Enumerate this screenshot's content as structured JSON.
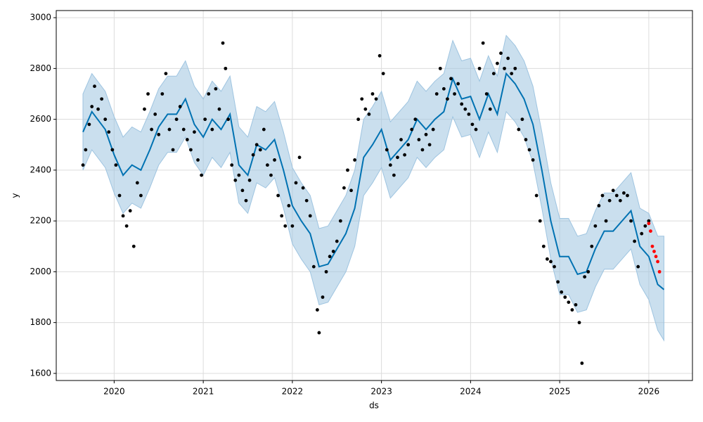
{
  "chart_data": {
    "type": "forecast",
    "xlabel": "ds",
    "ylabel": "y",
    "xlim": [
      2019.35,
      2026.49
    ],
    "ylim": [
      1572,
      3028
    ],
    "xticks": [
      2020,
      2021,
      2022,
      2023,
      2024,
      2025,
      2026
    ],
    "yticks": [
      1600,
      1800,
      2000,
      2200,
      2400,
      2600,
      2800,
      3000
    ],
    "grid": true,
    "forecast": {
      "color": "#0072b2",
      "band_color": "#9ec4e0",
      "x": [
        2019.65,
        2019.75,
        2019.9,
        2020.0,
        2020.1,
        2020.2,
        2020.3,
        2020.4,
        2020.5,
        2020.6,
        2020.7,
        2020.8,
        2020.9,
        2021.0,
        2021.1,
        2021.2,
        2021.3,
        2021.4,
        2021.5,
        2021.6,
        2021.7,
        2021.8,
        2021.9,
        2022.0,
        2022.1,
        2022.2,
        2022.3,
        2022.4,
        2022.5,
        2022.6,
        2022.7,
        2022.8,
        2022.9,
        2023.0,
        2023.1,
        2023.2,
        2023.3,
        2023.4,
        2023.5,
        2023.6,
        2023.7,
        2023.8,
        2023.9,
        2024.0,
        2024.1,
        2024.2,
        2024.3,
        2024.4,
        2024.5,
        2024.6,
        2024.7,
        2024.8,
        2024.9,
        2025.0,
        2025.1,
        2025.2,
        2025.3,
        2025.4,
        2025.5,
        2025.6,
        2025.7,
        2025.8,
        2025.9,
        2026.0,
        2026.1,
        2026.17
      ],
      "values": [
        2550,
        2630,
        2560,
        2460,
        2380,
        2420,
        2400,
        2480,
        2570,
        2620,
        2620,
        2680,
        2580,
        2530,
        2600,
        2560,
        2620,
        2420,
        2380,
        2500,
        2480,
        2520,
        2400,
        2260,
        2200,
        2150,
        2020,
        2030,
        2090,
        2150,
        2250,
        2450,
        2500,
        2560,
        2440,
        2480,
        2520,
        2600,
        2560,
        2600,
        2630,
        2760,
        2680,
        2690,
        2600,
        2700,
        2620,
        2780,
        2740,
        2680,
        2580,
        2400,
        2200,
        2060,
        2060,
        1990,
        2000,
        2090,
        2160,
        2160,
        2200,
        2240,
        2100,
        2060,
        1950,
        1930
      ],
      "lower": [
        2400,
        2480,
        2410,
        2310,
        2230,
        2270,
        2250,
        2330,
        2420,
        2470,
        2470,
        2530,
        2430,
        2380,
        2450,
        2410,
        2470,
        2270,
        2230,
        2350,
        2330,
        2370,
        2250,
        2110,
        2050,
        2000,
        1870,
        1880,
        1940,
        2000,
        2100,
        2300,
        2350,
        2410,
        2290,
        2330,
        2370,
        2450,
        2410,
        2450,
        2480,
        2610,
        2530,
        2540,
        2450,
        2550,
        2470,
        2630,
        2590,
        2530,
        2430,
        2250,
        2050,
        1910,
        1910,
        1840,
        1850,
        1940,
        2010,
        2010,
        2050,
        2090,
        1950,
        1890,
        1770,
        1730
      ],
      "upper": [
        2700,
        2780,
        2710,
        2610,
        2530,
        2570,
        2550,
        2630,
        2720,
        2770,
        2770,
        2830,
        2730,
        2680,
        2750,
        2710,
        2770,
        2570,
        2530,
        2650,
        2630,
        2670,
        2550,
        2410,
        2350,
        2300,
        2170,
        2180,
        2240,
        2300,
        2400,
        2600,
        2650,
        2710,
        2590,
        2630,
        2670,
        2750,
        2710,
        2750,
        2780,
        2910,
        2830,
        2840,
        2750,
        2850,
        2770,
        2930,
        2890,
        2830,
        2730,
        2550,
        2350,
        2210,
        2210,
        2140,
        2150,
        2240,
        2310,
        2310,
        2350,
        2390,
        2250,
        2230,
        2140,
        2140
      ]
    },
    "observed": {
      "color": "#000000",
      "x": [
        2019.65,
        2019.68,
        2019.72,
        2019.75,
        2019.78,
        2019.82,
        2019.86,
        2019.9,
        2019.94,
        2019.98,
        2020.02,
        2020.06,
        2020.1,
        2020.14,
        2020.18,
        2020.22,
        2020.26,
        2020.3,
        2020.34,
        2020.38,
        2020.42,
        2020.46,
        2020.5,
        2020.54,
        2020.58,
        2020.62,
        2020.66,
        2020.7,
        2020.74,
        2020.78,
        2020.82,
        2020.86,
        2020.9,
        2020.94,
        2020.98,
        2021.02,
        2021.06,
        2021.1,
        2021.14,
        2021.18,
        2021.22,
        2021.25,
        2021.28,
        2021.32,
        2021.36,
        2021.4,
        2021.44,
        2021.48,
        2021.52,
        2021.56,
        2021.6,
        2021.64,
        2021.68,
        2021.72,
        2021.76,
        2021.8,
        2021.84,
        2021.88,
        2021.92,
        2021.96,
        2022.0,
        2022.04,
        2022.08,
        2022.12,
        2022.16,
        2022.2,
        2022.24,
        2022.28,
        2022.3,
        2022.34,
        2022.38,
        2022.42,
        2022.46,
        2022.5,
        2022.54,
        2022.58,
        2022.62,
        2022.66,
        2022.7,
        2022.74,
        2022.78,
        2022.82,
        2022.86,
        2022.9,
        2022.94,
        2022.98,
        2023.02,
        2023.06,
        2023.1,
        2023.14,
        2023.18,
        2023.22,
        2023.26,
        2023.3,
        2023.34,
        2023.38,
        2023.42,
        2023.46,
        2023.5,
        2023.54,
        2023.58,
        2023.62,
        2023.66,
        2023.7,
        2023.74,
        2023.78,
        2023.82,
        2023.86,
        2023.9,
        2023.94,
        2023.98,
        2024.02,
        2024.06,
        2024.1,
        2024.14,
        2024.18,
        2024.22,
        2024.26,
        2024.3,
        2024.34,
        2024.38,
        2024.42,
        2024.46,
        2024.5,
        2024.54,
        2024.58,
        2024.62,
        2024.66,
        2024.7,
        2024.74,
        2024.78,
        2024.82,
        2024.86,
        2024.9,
        2024.94,
        2024.98,
        2025.02,
        2025.06,
        2025.1,
        2025.14,
        2025.18,
        2025.22,
        2025.25,
        2025.28,
        2025.32,
        2025.36,
        2025.4,
        2025.44,
        2025.48,
        2025.52,
        2025.56,
        2025.6,
        2025.64,
        2025.68,
        2025.72,
        2025.76,
        2025.8,
        2025.84,
        2025.88,
        2025.92,
        2025.96,
        2026.0
      ],
      "values": [
        2420,
        2480,
        2580,
        2650,
        2730,
        2640,
        2680,
        2600,
        2550,
        2480,
        2420,
        2300,
        2220,
        2180,
        2240,
        2100,
        2350,
        2300,
        2640,
        2700,
        2560,
        2620,
        2540,
        2700,
        2780,
        2560,
        2480,
        2600,
        2650,
        2560,
        2520,
        2480,
        2550,
        2440,
        2380,
        2600,
        2700,
        2560,
        2720,
        2640,
        2900,
        2800,
        2600,
        2420,
        2360,
        2380,
        2320,
        2280,
        2360,
        2460,
        2500,
        2480,
        2560,
        2420,
        2380,
        2440,
        2300,
        2220,
        2180,
        2260,
        2180,
        2350,
        2450,
        2330,
        2280,
        2220,
        2020,
        1850,
        1760,
        1900,
        2000,
        2060,
        2080,
        2120,
        2200,
        2330,
        2400,
        2320,
        2440,
        2600,
        2680,
        2640,
        2620,
        2700,
        2680,
        2850,
        2780,
        2480,
        2420,
        2380,
        2450,
        2520,
        2460,
        2500,
        2560,
        2600,
        2520,
        2480,
        2540,
        2500,
        2560,
        2700,
        2800,
        2720,
        2680,
        2760,
        2700,
        2740,
        2660,
        2640,
        2620,
        2580,
        2560,
        2800,
        2900,
        2700,
        2640,
        2780,
        2820,
        2860,
        2800,
        2840,
        2780,
        2800,
        2560,
        2600,
        2520,
        2480,
        2440,
        2300,
        2200,
        2100,
        2050,
        2040,
        2020,
        1960,
        1920,
        1900,
        1880,
        1850,
        1870,
        1800,
        1640,
        1980,
        2000,
        2100,
        2180,
        2260,
        2300,
        2200,
        2280,
        2320,
        2300,
        2280,
        2310,
        2300,
        2200,
        2120,
        2020,
        2150,
        2180,
        2200
      ]
    },
    "recent": {
      "color": "#ff0000",
      "x": [
        2026.0,
        2026.02,
        2026.04,
        2026.06,
        2026.08,
        2026.1,
        2026.12
      ],
      "values": [
        2190,
        2160,
        2100,
        2080,
        2060,
        2040,
        2000
      ]
    }
  }
}
